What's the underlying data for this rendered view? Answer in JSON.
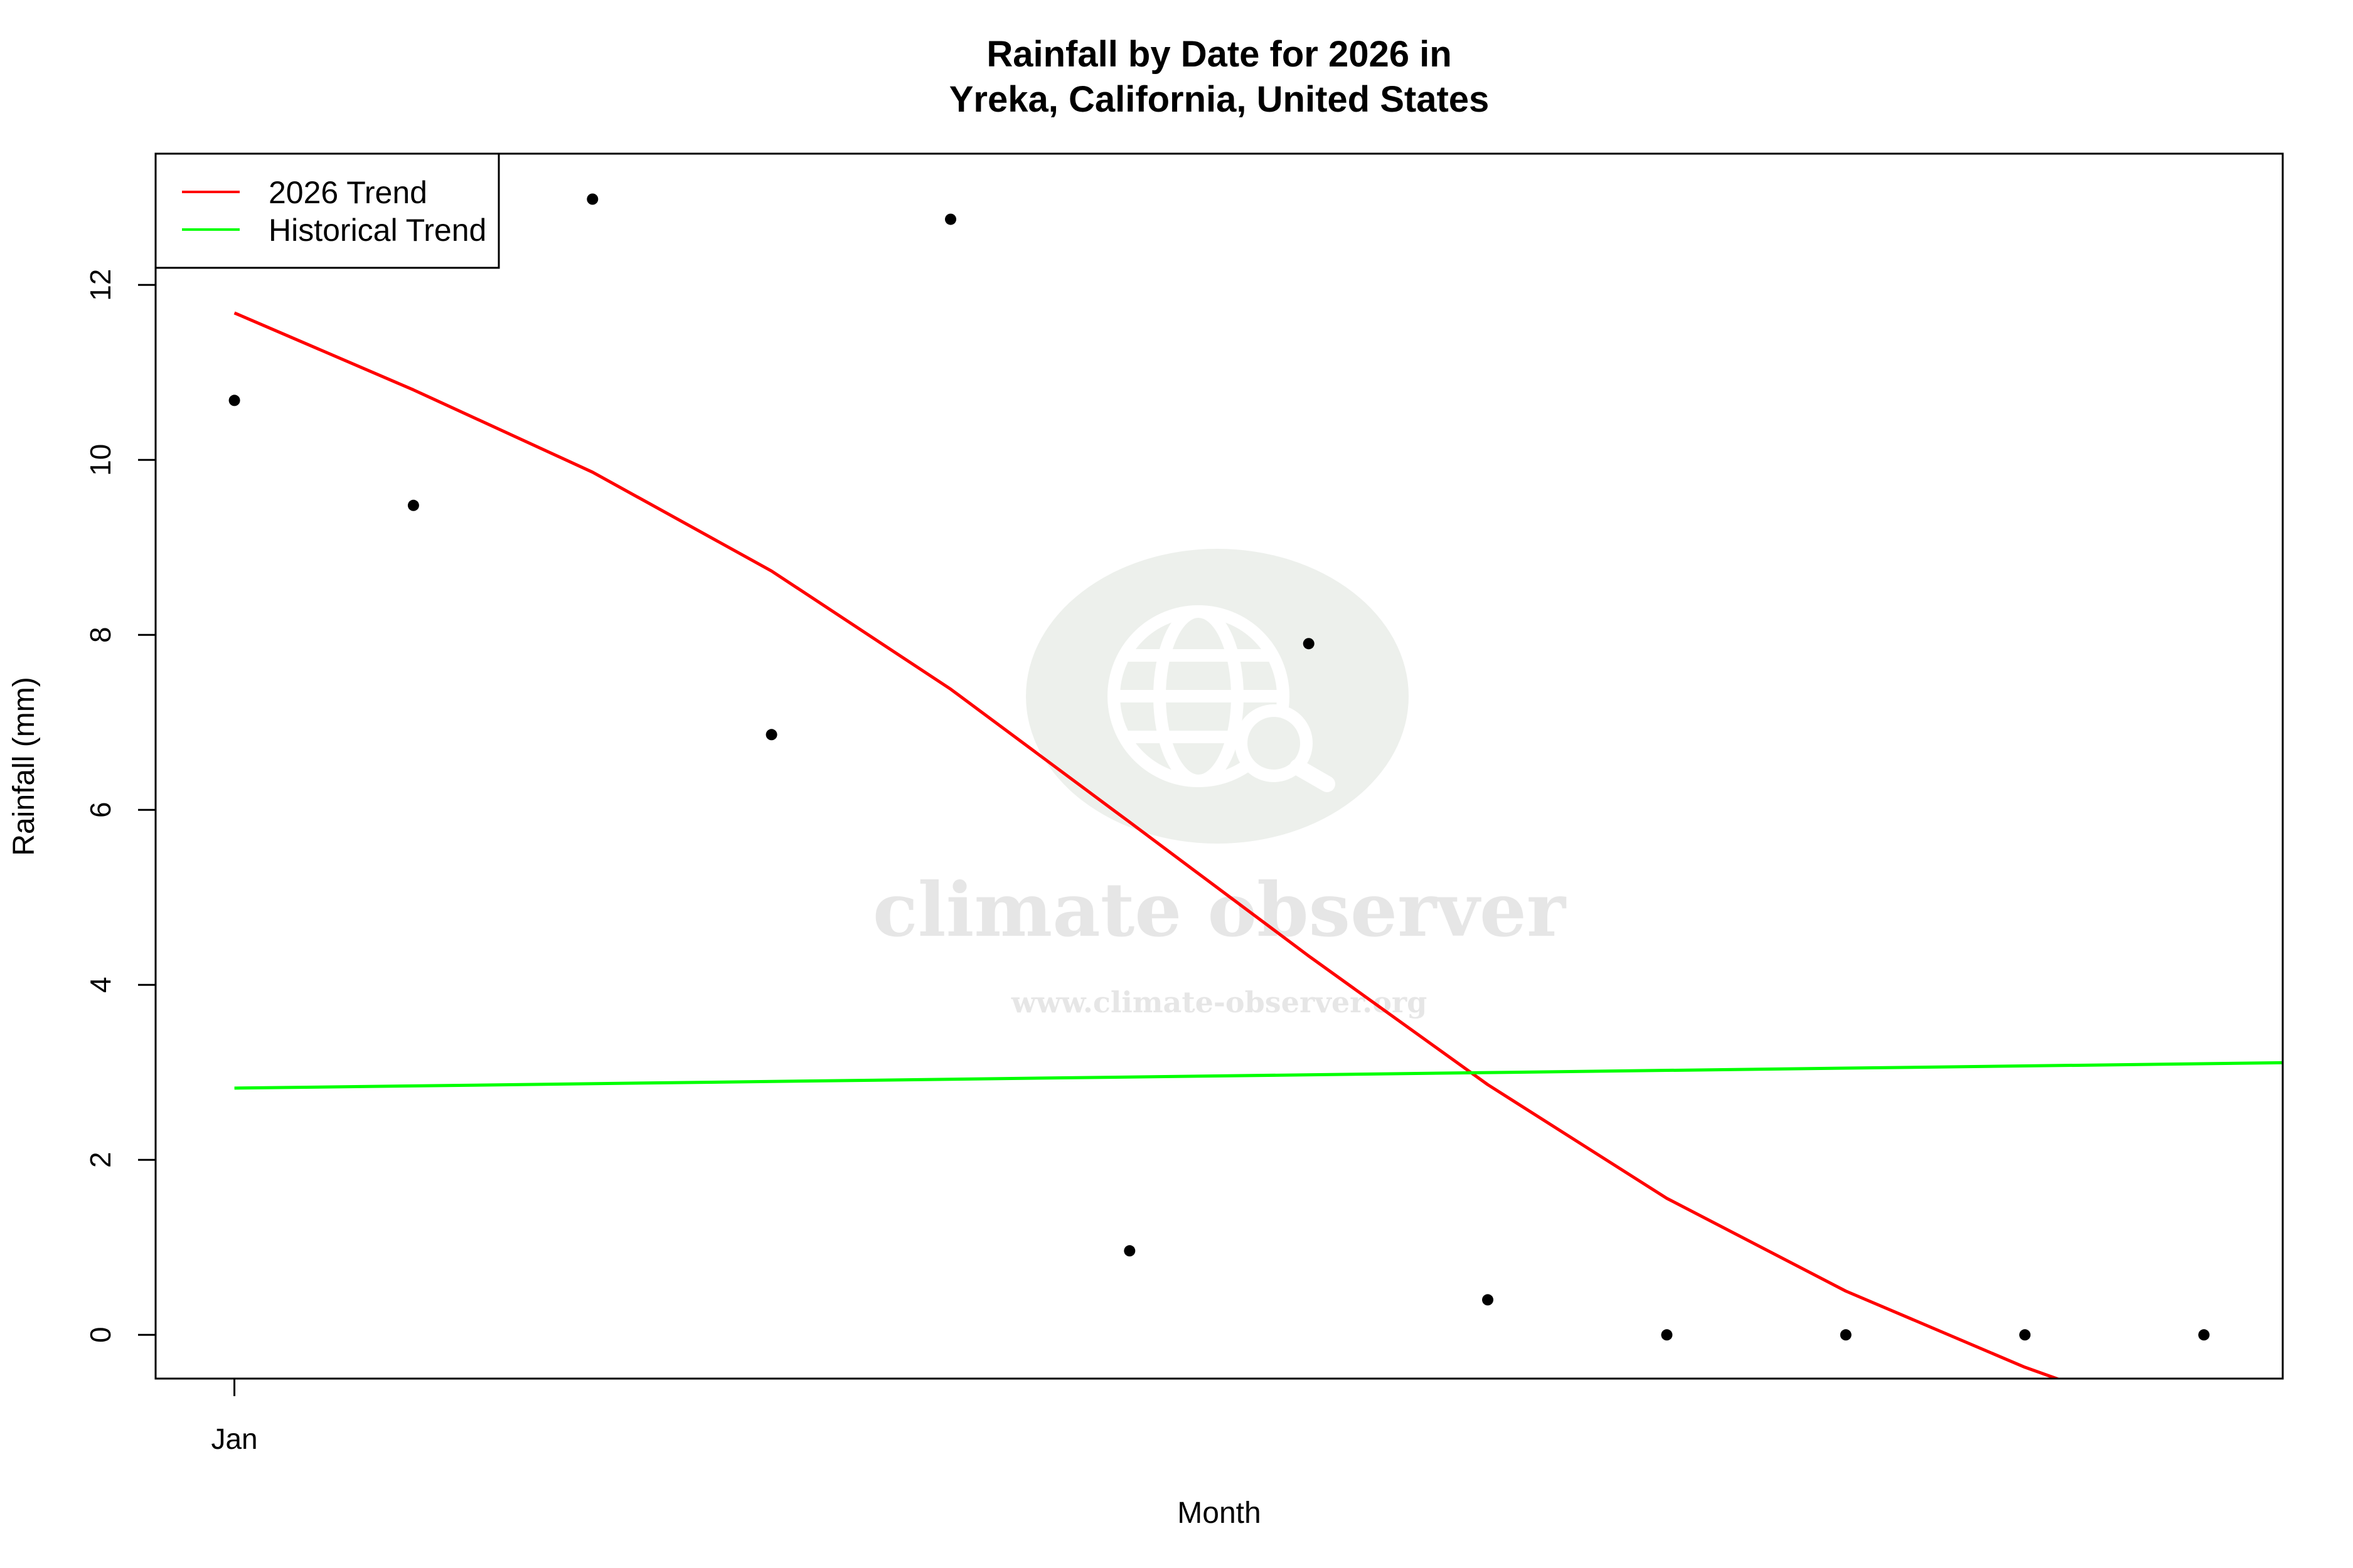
{
  "chart_data": {
    "type": "scatter",
    "title": [
      "Rainfall by Date for 2026 in",
      "Yreka, California, United States"
    ],
    "xlabel": "Month",
    "ylabel": "Rainfall (mm)",
    "x_tick_labels": [
      {
        "x": 1,
        "label": "Jan"
      }
    ],
    "xlim": [
      0.56,
      12.44
    ],
    "ylim": [
      -0.5,
      13.5
    ],
    "y_ticks": [
      0,
      2,
      4,
      6,
      8,
      10,
      12
    ],
    "grid": false,
    "legend": {
      "placement": "top-left",
      "entries": [
        {
          "label": "2026 Trend",
          "color": "#ff0000"
        },
        {
          "label": "Historical Trend",
          "color": "#00ff00"
        }
      ]
    },
    "points": {
      "x": [
        1,
        2,
        3,
        4,
        5,
        6,
        7,
        8,
        9,
        10,
        11,
        12
      ],
      "y": [
        10.68,
        9.48,
        12.98,
        6.86,
        12.75,
        0.96,
        7.9,
        0.4,
        0.0,
        0.0,
        0.0,
        0.0
      ],
      "color": "#000000"
    },
    "series": [
      {
        "name": "2026 Trend",
        "color": "#ff0000",
        "x": [
          1,
          2,
          3,
          4,
          5,
          6,
          7,
          8,
          9,
          10,
          11,
          12
        ],
        "y": [
          11.68,
          10.8,
          9.86,
          8.73,
          7.38,
          5.86,
          4.33,
          2.86,
          1.56,
          0.5,
          -0.37,
          -1.1
        ]
      },
      {
        "name": "Historical Trend",
        "color": "#00ff00",
        "x": [
          1,
          12.44
        ],
        "y": [
          2.82,
          3.11
        ]
      }
    ]
  },
  "watermark": {
    "name": "climate observer",
    "url": "www.climate-observer.org",
    "icon": "globe-search-icon"
  }
}
